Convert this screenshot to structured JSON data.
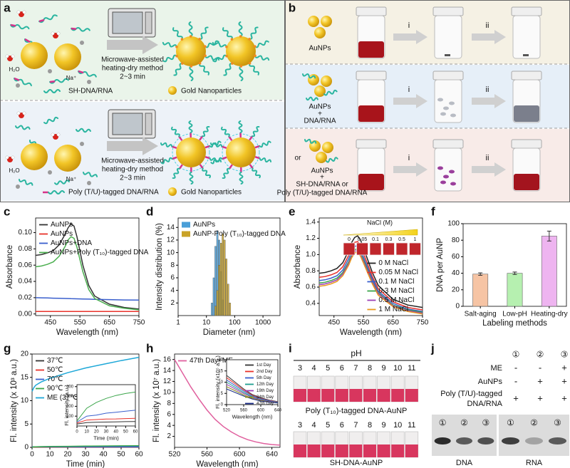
{
  "panel_a": {
    "label": "a",
    "top": {
      "water": "H₂O",
      "sodium": "Na⁺",
      "method": [
        "Microwave-assisted",
        "heating-dry method"
      ],
      "time": "2~3 min",
      "legend": [
        "SH-DNA/RNA",
        "Gold Nanoparticles"
      ]
    },
    "bottom": {
      "water": "H₂O",
      "sodium": "Na⁺",
      "method": [
        "Microwave-assisted",
        "heating-dry method"
      ],
      "time": "2~3 min",
      "legend": [
        "Poly (T/U)-tagged DNA/RNA",
        "Gold Nanoparticles"
      ]
    }
  },
  "panel_b": {
    "label": "b",
    "steps": [
      "i",
      "ii"
    ],
    "rows": [
      {
        "text": [
          "AuNPs"
        ]
      },
      {
        "text": [
          "AuNPs",
          "+",
          "DNA/RNA"
        ]
      },
      {
        "prefix": "or",
        "text": [
          "AuNPs",
          "+",
          "SH-DNA/RNA or",
          "Poly (T/U)-tagged DNA/RNA"
        ]
      }
    ]
  },
  "chart_data": [
    {
      "panel": "c",
      "type": "line",
      "xlabel": "Wavelength (nm)",
      "ylabel": "Absorbance",
      "x": [
        400,
        420,
        440,
        460,
        480,
        500,
        510,
        520,
        530,
        540,
        560,
        580,
        600,
        650,
        700,
        750
      ],
      "xlim": [
        400,
        750
      ],
      "xticks": [
        450,
        550,
        650,
        750
      ],
      "ylim": [
        -0.002,
        0.118
      ],
      "yticks": [
        {
          "value": 0,
          "label": "0.00"
        },
        0.02,
        0.04,
        0.06,
        0.08,
        {
          "value": 0.1,
          "label": "0.10"
        }
      ],
      "legend": "upper left",
      "series": [
        {
          "name": "AuNPs",
          "color": "#333333",
          "values": [
            0.072,
            0.073,
            0.075,
            0.078,
            0.085,
            0.098,
            0.106,
            0.111,
            0.108,
            0.095,
            0.06,
            0.035,
            0.022,
            0.012,
            0.008,
            0.006
          ]
        },
        {
          "name": "AuNPs",
          "color": "#e8322b",
          "values": [
            0.003,
            0.003,
            0.003,
            0.003,
            0.003,
            0.003,
            0.003,
            0.003,
            0.003,
            0.003,
            0.003,
            0.003,
            0.003,
            0.003,
            0.003,
            0.003
          ]
        },
        {
          "name": "AuNPs+DNA",
          "color": "#3a5fcd",
          "values": [
            0.02,
            0.0198,
            0.0196,
            0.0194,
            0.0192,
            0.019,
            0.0189,
            0.0188,
            0.0187,
            0.0186,
            0.0184,
            0.0182,
            0.018,
            0.0176,
            0.0172,
            0.017
          ]
        },
        {
          "name": "AuNPs+Poly (T₁₀)-tagged DNA",
          "color": "#4caf50",
          "values": [
            0.058,
            0.059,
            0.061,
            0.064,
            0.071,
            0.083,
            0.091,
            0.095,
            0.093,
            0.082,
            0.052,
            0.03,
            0.019,
            0.01,
            0.007,
            0.005
          ]
        }
      ]
    },
    {
      "panel": "d",
      "type": "bar",
      "xlabel": "Diameter (nm)",
      "ylabel": "Intensity distribution (%)",
      "xlog": true,
      "xlim": [
        1,
        4000
      ],
      "xticks": [
        1,
        10,
        100,
        1000
      ],
      "ylim": [
        0,
        15.5
      ],
      "yticks": [
        2,
        4,
        6,
        8,
        10,
        12,
        14
      ],
      "legend": "upper left",
      "series": [
        {
          "name": "AuNPs",
          "color": "#4a9fd8",
          "x": [
            15.7,
            18.2,
            21,
            24.4,
            28.2,
            32.7,
            37.8
          ],
          "values": [
            2,
            6,
            11,
            13.5,
            12,
            7,
            2.5
          ]
        },
        {
          "name": "AuNP-Poly (T₁₀)-tagged DNA",
          "color": "#c9a227",
          "x": [
            21,
            24.4,
            28.2,
            32.7,
            37.8,
            43.8,
            50.7,
            58.8,
            68
          ],
          "values": [
            1.5,
            4,
            8,
            11.5,
            13,
            12,
            9,
            5,
            2
          ]
        }
      ]
    },
    {
      "panel": "e",
      "type": "line",
      "xlabel": "Wavelength (nm)",
      "ylabel": "Absorbance",
      "x": [
        400,
        420,
        440,
        460,
        480,
        500,
        510,
        520,
        530,
        540,
        560,
        580,
        600,
        650,
        700,
        750
      ],
      "xlim": [
        400,
        750
      ],
      "xticks": [
        450,
        550,
        650,
        750
      ],
      "ylim": [
        0.25,
        1.45
      ],
      "yticks": [
        0.4,
        0.6,
        0.8,
        {
          "value": 1,
          "label": "1.0"
        },
        1.2,
        1.4
      ],
      "legend": "lower right",
      "inset_title": "NaCl (M)",
      "inset_labels": [
        "0",
        "0.05",
        "0.1",
        "0.3",
        "0.5",
        "1"
      ],
      "series": [
        {
          "name": "0 M NaCl",
          "color": "#222222",
          "values": [
            0.77,
            0.78,
            0.8,
            0.83,
            0.9,
            1.05,
            1.15,
            1.21,
            1.23,
            1.18,
            0.98,
            0.78,
            0.62,
            0.45,
            0.38,
            0.35
          ]
        },
        {
          "name": "0.05 M NaCl",
          "color": "#e8322b",
          "values": [
            0.72,
            0.73,
            0.75,
            0.78,
            0.85,
            0.99,
            1.09,
            1.15,
            1.16,
            1.11,
            0.92,
            0.73,
            0.58,
            0.42,
            0.35,
            0.32
          ]
        },
        {
          "name": "0.1 M NaCl",
          "color": "#3a5fcd",
          "values": [
            0.68,
            0.69,
            0.71,
            0.74,
            0.81,
            0.95,
            1.04,
            1.1,
            1.11,
            1.06,
            0.88,
            0.7,
            0.55,
            0.4,
            0.33,
            0.3
          ]
        },
        {
          "name": "0.3 M NaCl",
          "color": "#3aa54a",
          "values": [
            0.65,
            0.66,
            0.68,
            0.71,
            0.78,
            0.91,
            1,
            1.06,
            1.07,
            1.02,
            0.85,
            0.67,
            0.53,
            0.38,
            0.32,
            0.29
          ]
        },
        {
          "name": "0.5 M NaCl",
          "color": "#9b3fb5",
          "values": [
            0.63,
            0.64,
            0.66,
            0.69,
            0.76,
            0.89,
            0.98,
            1.04,
            1.05,
            1,
            0.83,
            0.66,
            0.52,
            0.37,
            0.31,
            0.28
          ]
        },
        {
          "name": "1 M NaCl",
          "color": "#e89a1c",
          "values": [
            0.61,
            0.62,
            0.64,
            0.67,
            0.74,
            0.87,
            0.96,
            1.02,
            1.03,
            0.98,
            0.81,
            0.64,
            0.5,
            0.36,
            0.3,
            0.27
          ]
        }
      ]
    },
    {
      "panel": "f",
      "type": "bar",
      "xlabel": "Labeling methods",
      "ylabel": "DNA per AuNP",
      "categories": [
        "Salt-aging",
        "Low-pH",
        "Heating-dry"
      ],
      "values": [
        39,
        40,
        85
      ],
      "errors": [
        1.5,
        1.5,
        6
      ],
      "colors": [
        "#f6c4a4",
        "#b6f0b0",
        "#eeb4f0"
      ],
      "ylim": [
        0,
        100
      ],
      "yticks": [
        0,
        20,
        40,
        60,
        80,
        100
      ]
    },
    {
      "panel": "g",
      "type": "line",
      "xlabel": "Time (min)",
      "ylabel": "Fl. intensity (x 10³ a.u.)",
      "x": [
        0,
        1,
        2,
        5,
        10,
        20,
        30,
        40,
        50,
        60
      ],
      "xlim": [
        0,
        60
      ],
      "xticks": [
        0,
        10,
        20,
        30,
        40,
        50,
        60
      ],
      "ylim": [
        0,
        20
      ],
      "yticks": [
        0,
        5,
        10,
        15,
        20
      ],
      "legend": "upper left",
      "series": [
        {
          "name": "37℃",
          "color": "#333333",
          "values": [
            0.04,
            0.04,
            0.04,
            0.04,
            0.04,
            0.04,
            0.04,
            0.04,
            0.04,
            0.04
          ]
        },
        {
          "name": "50℃",
          "color": "#e8322b",
          "values": [
            0.07,
            0.07,
            0.07,
            0.07,
            0.07,
            0.07,
            0.07,
            0.07,
            0.07,
            0.07
          ]
        },
        {
          "name": "70℃",
          "color": "#3a5fcd",
          "values": [
            0.12,
            0.12,
            0.12,
            0.12,
            0.12,
            0.12,
            0.12,
            0.12,
            0.12,
            0.12
          ]
        },
        {
          "name": "90℃",
          "color": "#3aa54a",
          "values": [
            0,
            0.1,
            0.12,
            0.15,
            0.18,
            0.22,
            0.26,
            0.29,
            0.32,
            0.34
          ]
        },
        {
          "name": "ME (37℃)",
          "color": "#1fa8d8",
          "values": [
            12,
            12.8,
            13.3,
            14,
            14.8,
            16,
            17,
            17.8,
            18.6,
            19.3
          ]
        }
      ],
      "inset": {
        "type": "line",
        "xlabel": "Time (min)",
        "ylabel": "Fl. intensity (a.u.)",
        "x": [
          0,
          10,
          20,
          30,
          40,
          50,
          60
        ],
        "xlim": [
          0,
          60
        ],
        "xticks": [
          0,
          10,
          20,
          30,
          40,
          50,
          60
        ],
        "ylim": [
          0,
          420
        ],
        "yticks": [
          100,
          200,
          300,
          400
        ],
        "series": [
          {
            "color": "#333333",
            "values": [
              20,
              35,
              38,
              40,
              42,
              44,
              45
            ]
          },
          {
            "color": "#e8322b",
            "values": [
              30,
              60,
              65,
              70,
              72,
              75,
              78
            ]
          },
          {
            "color": "#3a5fcd",
            "values": [
              40,
              100,
              110,
              130,
              140,
              150,
              160
            ]
          },
          {
            "color": "#3aa54a",
            "values": [
              50,
              180,
              240,
              280,
              310,
              330,
              345
            ]
          }
        ]
      }
    },
    {
      "panel": "h",
      "type": "line",
      "xlabel": "Wavelength (nm)",
      "ylabel": "Fl. intensity (x 10⁷ a.u.)",
      "x": [
        520,
        530,
        540,
        550,
        560,
        570,
        580,
        590,
        600,
        610,
        620,
        630,
        640,
        650
      ],
      "xlim": [
        520,
        650
      ],
      "xticks": [
        520,
        560,
        600,
        640
      ],
      "ylim": [
        0,
        17
      ],
      "yticks": [
        2,
        4,
        6,
        8,
        10,
        12,
        14,
        16
      ],
      "legend": "upper left",
      "series": [
        {
          "name": "47th Day+ME",
          "color": "#e0609e",
          "values": [
            16,
            13.5,
            11,
            8.8,
            6.8,
            5.1,
            3.8,
            2.8,
            2,
            1.4,
            1,
            0.7,
            0.5,
            0.4
          ]
        }
      ],
      "inset": {
        "type": "line",
        "xlabel": "Wavelength (nm)",
        "ylabel": "Fl. intensity (x10⁵ a.u.)",
        "x": [
          520,
          540,
          560,
          580,
          600,
          620,
          640
        ],
        "xlim": [
          520,
          640
        ],
        "xticks": [
          520,
          560,
          600,
          640
        ],
        "ylim": [
          0,
          20
        ],
        "yticks": [
          0,
          5,
          10,
          15,
          20
        ],
        "legend": "upper right",
        "series": [
          {
            "name": "1st Day",
            "color": "#333333",
            "values": [
              13,
              10,
              7,
              4.5,
              3,
              2,
              1.3
            ]
          },
          {
            "name": "2nd Day",
            "color": "#e8322b",
            "values": [
              12,
              9.3,
              6.5,
              4.2,
              2.8,
              1.8,
              1.2
            ]
          },
          {
            "name": "5th Day",
            "color": "#3a5fcd",
            "values": [
              11,
              8.5,
              6,
              3.9,
              2.6,
              1.7,
              1.1
            ]
          },
          {
            "name": "12th Day",
            "color": "#1f9e8f",
            "values": [
              10,
              7.7,
              5.4,
              3.5,
              2.3,
              1.5,
              1
            ]
          },
          {
            "name": "19th Day",
            "color": "#9b3fb5",
            "values": [
              9,
              7,
              4.9,
              3.2,
              2.1,
              1.4,
              0.9
            ]
          },
          {
            "name": "34th Day",
            "color": "#8a8a1c",
            "values": [
              8,
              6.2,
              4.3,
              2.8,
              1.9,
              1.2,
              0.8
            ]
          },
          {
            "name": "47th Day",
            "color": "#1c2f8a",
            "values": [
              7,
              5.4,
              3.8,
              2.5,
              1.6,
              1.1,
              0.7
            ]
          }
        ]
      }
    }
  ],
  "panel_i": {
    "label": "i",
    "title": "pH",
    "ph": [
      3,
      4,
      5,
      6,
      7,
      8,
      9,
      10,
      11
    ],
    "rows": [
      "Poly (T₁₀)-tagged DNA-AuNP",
      "SH-DNA-AuNP"
    ]
  },
  "panel_j": {
    "label": "j",
    "lanes": [
      "①",
      "②",
      "③"
    ],
    "rows": [
      {
        "name": [
          "ME"
        ],
        "marks": [
          "-",
          "-",
          "+"
        ]
      },
      {
        "name": [
          "AuNPs"
        ],
        "marks": [
          "-",
          "+",
          "+"
        ]
      },
      {
        "name": [
          "Poly (T/U)-tagged",
          "DNA/RNA"
        ],
        "marks": [
          "+",
          "+",
          "+"
        ]
      }
    ],
    "gels": [
      {
        "name": "DNA",
        "lanes": [
          "①",
          "②",
          "③"
        ]
      },
      {
        "name": "RNA",
        "lanes": [
          "①",
          "②",
          "③"
        ]
      }
    ]
  }
}
